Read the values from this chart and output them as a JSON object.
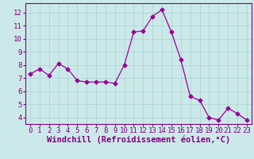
{
  "x": [
    0,
    1,
    2,
    3,
    4,
    5,
    6,
    7,
    8,
    9,
    10,
    11,
    12,
    13,
    14,
    15,
    16,
    17,
    18,
    19,
    20,
    21,
    22,
    23
  ],
  "y": [
    7.3,
    7.7,
    7.2,
    8.1,
    7.7,
    6.8,
    6.7,
    6.7,
    6.7,
    6.6,
    8.0,
    10.5,
    10.6,
    11.7,
    12.2,
    10.5,
    8.4,
    5.6,
    5.3,
    4.0,
    3.8,
    4.7,
    4.3,
    3.8
  ],
  "line_color": "#990099",
  "marker": "D",
  "marker_size": 2.5,
  "bg_color": "#cce9e9",
  "grid_color": "#aad4d4",
  "xlabel": "Windchill (Refroidissement éolien,°C)",
  "ylim": [
    3.5,
    12.7
  ],
  "xlim": [
    -0.5,
    23.5
  ],
  "yticks": [
    4,
    5,
    6,
    7,
    8,
    9,
    10,
    11,
    12
  ],
  "xticks": [
    0,
    1,
    2,
    3,
    4,
    5,
    6,
    7,
    8,
    9,
    10,
    11,
    12,
    13,
    14,
    15,
    16,
    17,
    18,
    19,
    20,
    21,
    22,
    23
  ],
  "tick_color": "#800080",
  "axis_color": "#800080",
  "xlabel_fontsize": 7.5,
  "tick_fontsize": 6.5
}
